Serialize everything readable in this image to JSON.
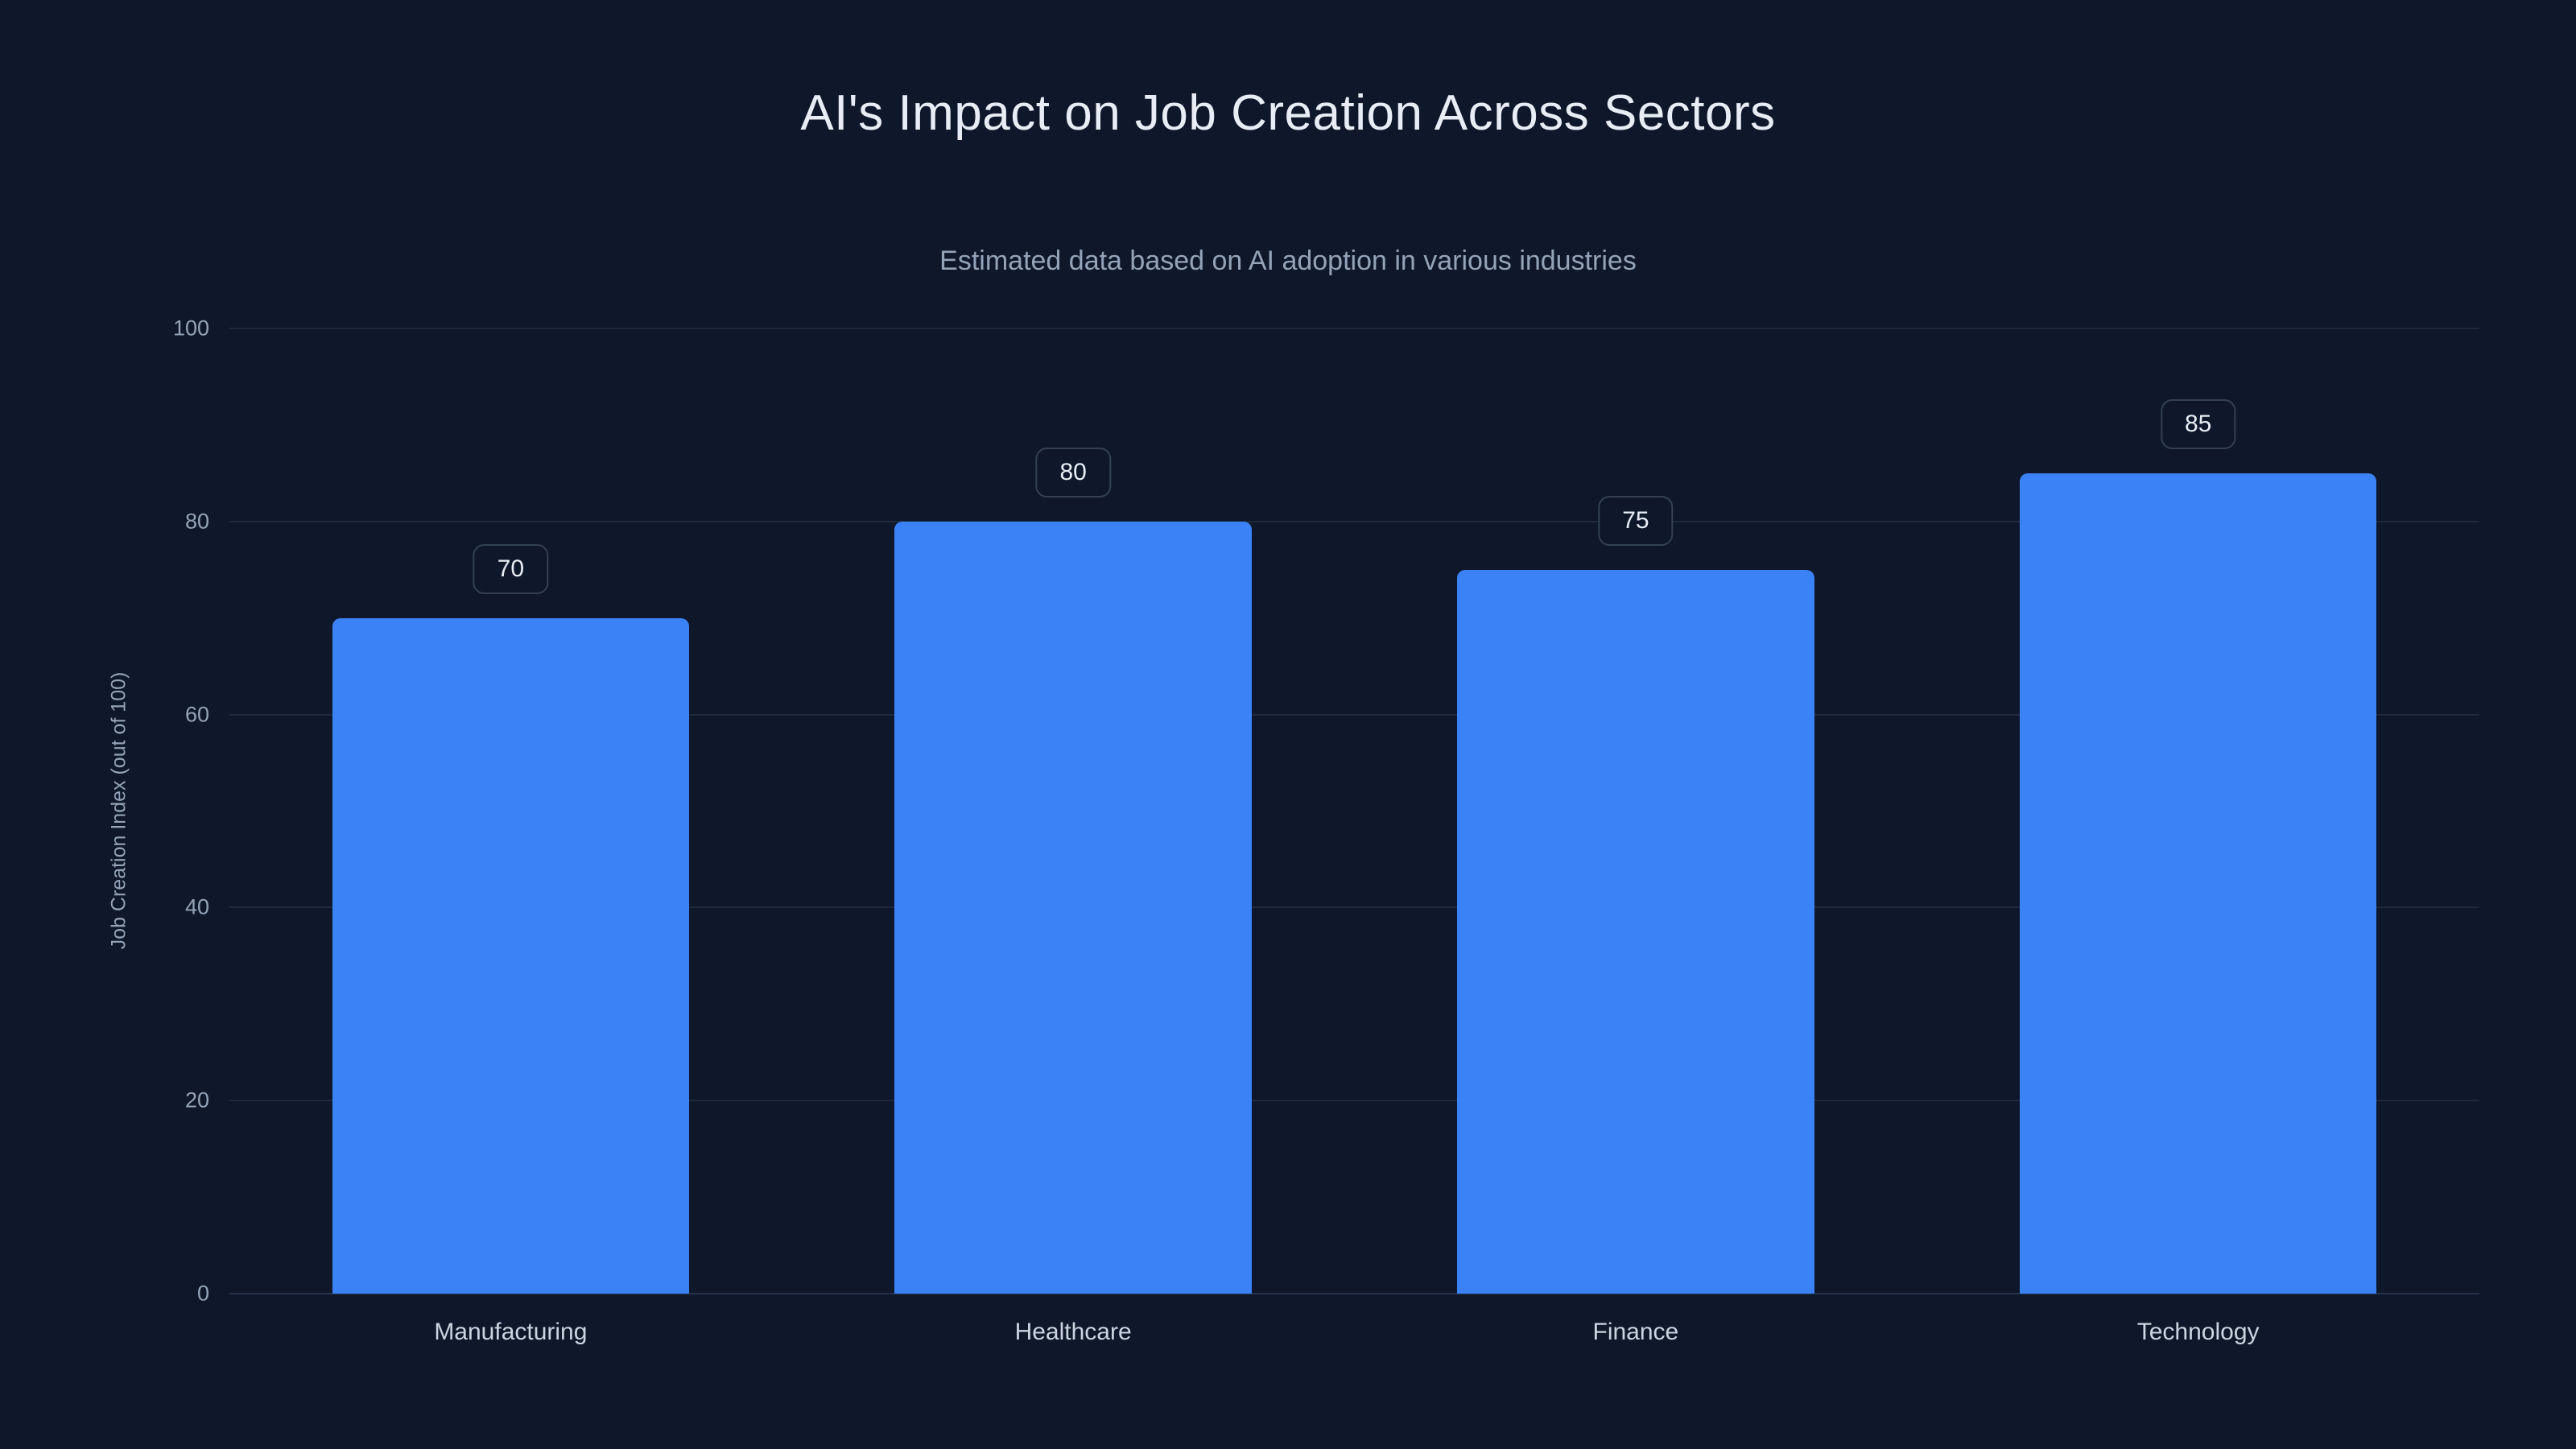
{
  "title": "AI's Impact on Job Creation Across Sectors",
  "subtitle": "Estimated data based on AI adoption in various industries",
  "chart_data": {
    "type": "bar",
    "categories": [
      "Manufacturing",
      "Healthcare",
      "Finance",
      "Technology"
    ],
    "values": [
      70,
      80,
      75,
      85
    ],
    "title": "AI's Impact on Job Creation Across Sectors",
    "subtitle": "Estimated data based on AI adoption in various industries",
    "xlabel": "",
    "ylabel": "Job Creation Index (out of 100)",
    "ylim": [
      0,
      100
    ],
    "yticks": [
      0,
      20,
      40,
      60,
      80,
      100
    ],
    "grid": true,
    "legend": false,
    "value_labels_visible": true,
    "colors": {
      "background": "#0f172a",
      "bar": "#3b82f6",
      "gridline": "#1e2a3d",
      "tick_label": "#94a3b8",
      "title": "#e8edf5",
      "subtitle": "#94a3b8",
      "category_label": "#cbd5e1",
      "value_pill_border": "#334155",
      "value_pill_text": "#e8edf5"
    }
  }
}
